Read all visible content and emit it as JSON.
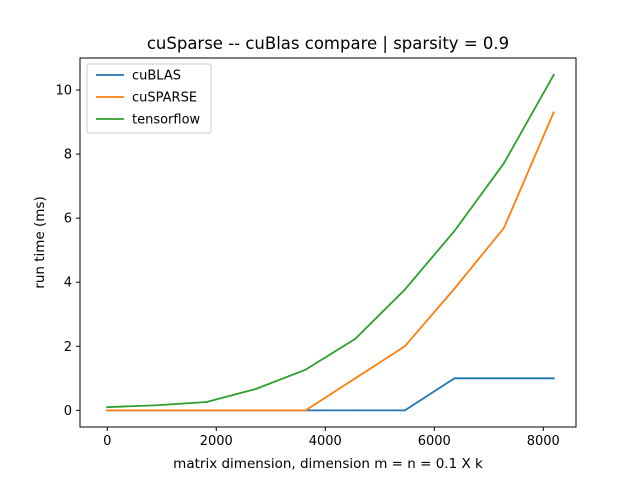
{
  "chart_data": {
    "type": "line",
    "title": "cuSparse -- cuBlas compare | sparsity = 0.9",
    "xlabel": "matrix dimension, dimension m = n = 0.1 X k",
    "ylabel": "run time (ms)",
    "xlim": [
      -500,
      8600
    ],
    "ylim": [
      -0.52,
      11.0
    ],
    "xticks": [
      0,
      2000,
      4000,
      6000,
      8000
    ],
    "yticks": [
      0,
      2,
      4,
      6,
      8,
      10
    ],
    "grid": false,
    "legend": "top-left",
    "series": [
      {
        "name": "cuBLAS",
        "color": "#1f77b4",
        "x": [
          0,
          910,
          1820,
          2730,
          3640,
          4550,
          5460,
          6370,
          7280,
          8190
        ],
        "y": [
          0.0,
          0.0,
          0.0,
          0.0,
          0.0,
          0.0,
          0.0,
          1.0,
          1.0,
          1.0
        ]
      },
      {
        "name": "cuSPARSE",
        "color": "#ff7f0e",
        "x": [
          0,
          910,
          1820,
          2730,
          3640,
          4550,
          5460,
          6370,
          7280,
          8190
        ],
        "y": [
          0.0,
          0.0,
          0.0,
          0.0,
          0.0,
          1.0,
          2.0,
          3.8,
          5.7,
          9.3
        ]
      },
      {
        "name": "tensorflow",
        "color": "#2ca02c",
        "x": [
          0,
          910,
          1820,
          2730,
          3640,
          4550,
          5460,
          6370,
          7280,
          8190
        ],
        "y": [
          0.1,
          0.16,
          0.26,
          0.67,
          1.27,
          2.23,
          3.77,
          5.6,
          7.72,
          10.47
        ]
      }
    ]
  }
}
